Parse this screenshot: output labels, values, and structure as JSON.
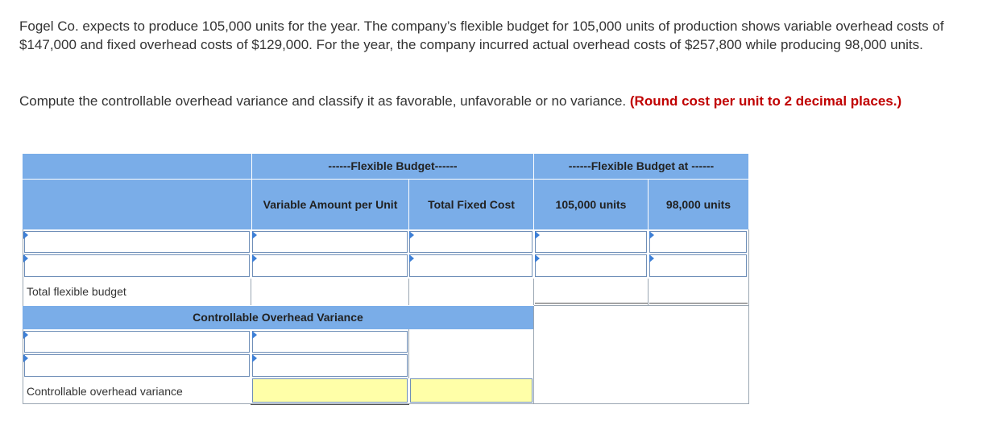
{
  "problem": {
    "text": "Fogel Co. expects to produce 105,000 units for the year. The company’s flexible budget for 105,000 units of production shows variable overhead costs of $147,000 and fixed overhead costs of $129,000. For the year, the company incurred actual overhead costs of $257,800 while producing 98,000 units."
  },
  "instruction": {
    "text": "Compute the controllable overhead variance and classify it as favorable, unfavorable or no variance.",
    "hint": "(Round cost per unit to 2 decimal places.)"
  },
  "table": {
    "group_header_flexible_budget": "------Flexible Budget------",
    "group_header_flexible_budget_at": "------Flexible Budget at ------",
    "col_variable_amount": "Variable Amount per Unit",
    "col_total_fixed_cost": "Total Fixed Cost",
    "col_105000": "105,000 units",
    "col_98000": "98,000 units",
    "row_total_flexible_budget": "Total flexible budget",
    "section_controllable": "Controllable Overhead Variance",
    "row_controllable_variance": "Controllable overhead variance",
    "inputs": {
      "r1_label": "",
      "r1_var": "",
      "r1_fixed": "",
      "r1_105": "",
      "r1_98": "",
      "r2_label": "",
      "r2_var": "",
      "r2_fixed": "",
      "r2_105": "",
      "r2_98": "",
      "c1_label": "",
      "c1_amount": "",
      "c2_label": "",
      "c2_amount": "",
      "variance_amount": "",
      "variance_class": ""
    }
  },
  "colors": {
    "header_blue": "#7aade8",
    "hint_red": "#c00000",
    "answer_yellow": "#ffffa8",
    "input_marker": "#3d7fd6"
  }
}
